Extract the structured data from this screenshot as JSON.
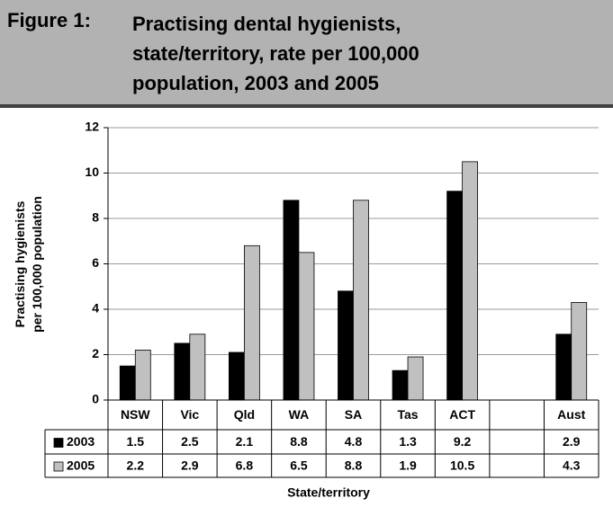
{
  "chart_data": {
    "type": "bar",
    "figure_label": "Figure 1:",
    "title": "Practising dental hygienists, state/territory, rate per 100,000 population, 2003 and 2005",
    "xlabel": "State/territory",
    "ylabel": [
      "Practising hygienists",
      "per 100,000 population"
    ],
    "categories": [
      "NSW",
      "Vic",
      "Qld",
      "WA",
      "SA",
      "Tas",
      "ACT",
      null,
      "Aust"
    ],
    "series": [
      {
        "name": "2003",
        "color": "#000000",
        "values": [
          1.5,
          2.5,
          2.1,
          8.8,
          4.8,
          1.3,
          9.2,
          null,
          2.9
        ]
      },
      {
        "name": "2005",
        "color": "#c0c0c0",
        "values": [
          2.2,
          2.9,
          6.8,
          6.5,
          8.8,
          1.9,
          10.5,
          null,
          4.3
        ]
      }
    ],
    "ylim": [
      0,
      12
    ],
    "yticks": [
      0,
      2,
      4,
      6,
      8,
      10,
      12
    ],
    "grid": true
  }
}
